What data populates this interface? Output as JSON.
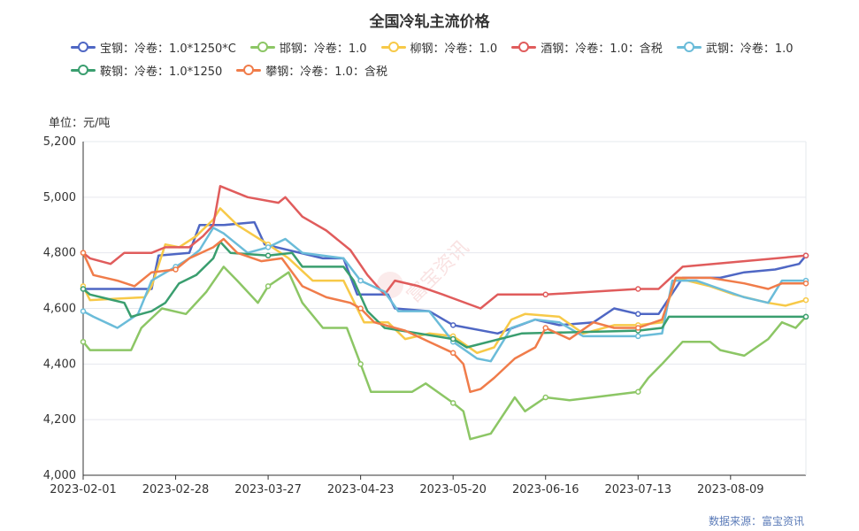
{
  "chart_data": {
    "type": "line",
    "title": "全国冷轧主流价格",
    "unit_label": "单位：元/吨",
    "source": "数据来源：富宝资讯",
    "watermark": "富宝资讯",
    "ylim": [
      4000,
      5200
    ],
    "yticks": [
      "4,000",
      "4,200",
      "4,400",
      "4,600",
      "4,800",
      "5,000",
      "5,200"
    ],
    "ytick_values": [
      4000,
      4200,
      4400,
      4600,
      4800,
      5000,
      5200
    ],
    "xlim": [
      "2023-02-01",
      "2023-08-31"
    ],
    "xticks": [
      "2023-02-01",
      "2023-02-28",
      "2023-03-27",
      "2023-04-23",
      "2023-05-20",
      "2023-06-16",
      "2023-07-13",
      "2023-08-09"
    ],
    "grid": "horizontal",
    "legend_position": "top",
    "series": [
      {
        "name": "宝钢：冷卷：1.0*1250*C",
        "color": "#4f67c4",
        "points": [
          [
            "2023-02-01",
            4670
          ],
          [
            "2023-02-11",
            4670
          ],
          [
            "2023-02-21",
            4670
          ],
          [
            "2023-02-23",
            4790
          ],
          [
            "2023-03-04",
            4800
          ],
          [
            "2023-03-07",
            4900
          ],
          [
            "2023-03-14",
            4900
          ],
          [
            "2023-03-23",
            4910
          ],
          [
            "2023-03-26",
            4830
          ],
          [
            "2023-04-12",
            4780
          ],
          [
            "2023-04-18",
            4780
          ],
          [
            "2023-04-22",
            4650
          ],
          [
            "2023-05-01",
            4650
          ],
          [
            "2023-05-03",
            4600
          ],
          [
            "2023-05-13",
            4590
          ],
          [
            "2023-05-20",
            4540
          ],
          [
            "2023-06-02",
            4510
          ],
          [
            "2023-06-13",
            4560
          ],
          [
            "2023-06-20",
            4540
          ],
          [
            "2023-06-30",
            4550
          ],
          [
            "2023-07-06",
            4600
          ],
          [
            "2023-07-13",
            4580
          ],
          [
            "2023-07-19",
            4580
          ],
          [
            "2023-07-26",
            4710
          ],
          [
            "2023-08-06",
            4710
          ],
          [
            "2023-08-13",
            4730
          ],
          [
            "2023-08-22",
            4740
          ],
          [
            "2023-08-29",
            4760
          ],
          [
            "2023-08-31",
            4790
          ]
        ]
      },
      {
        "name": "邯钢：冷卷：1.0",
        "color": "#8cc665",
        "points": [
          [
            "2023-02-01",
            4480
          ],
          [
            "2023-02-03",
            4450
          ],
          [
            "2023-02-15",
            4450
          ],
          [
            "2023-02-18",
            4530
          ],
          [
            "2023-02-24",
            4600
          ],
          [
            "2023-03-03",
            4580
          ],
          [
            "2023-03-09",
            4660
          ],
          [
            "2023-03-14",
            4750
          ],
          [
            "2023-03-18",
            4700
          ],
          [
            "2023-03-24",
            4620
          ],
          [
            "2023-03-27",
            4680
          ],
          [
            "2023-04-02",
            4730
          ],
          [
            "2023-04-06",
            4620
          ],
          [
            "2023-04-12",
            4530
          ],
          [
            "2023-04-19",
            4530
          ],
          [
            "2023-04-23",
            4400
          ],
          [
            "2023-04-26",
            4300
          ],
          [
            "2023-05-08",
            4300
          ],
          [
            "2023-05-12",
            4330
          ],
          [
            "2023-05-20",
            4260
          ],
          [
            "2023-05-23",
            4230
          ],
          [
            "2023-05-25",
            4130
          ],
          [
            "2023-05-31",
            4150
          ],
          [
            "2023-06-07",
            4280
          ],
          [
            "2023-06-10",
            4230
          ],
          [
            "2023-06-16",
            4280
          ],
          [
            "2023-06-23",
            4270
          ],
          [
            "2023-06-30",
            4280
          ],
          [
            "2023-07-13",
            4300
          ],
          [
            "2023-07-16",
            4350
          ],
          [
            "2023-07-20",
            4400
          ],
          [
            "2023-07-26",
            4480
          ],
          [
            "2023-08-03",
            4480
          ],
          [
            "2023-08-06",
            4450
          ],
          [
            "2023-08-13",
            4430
          ],
          [
            "2023-08-20",
            4490
          ],
          [
            "2023-08-24",
            4550
          ],
          [
            "2023-08-28",
            4530
          ],
          [
            "2023-08-31",
            4570
          ]
        ]
      },
      {
        "name": "柳钢：冷卷：1.0",
        "color": "#f7c948",
        "points": [
          [
            "2023-02-01",
            4680
          ],
          [
            "2023-02-03",
            4630
          ],
          [
            "2023-02-19",
            4640
          ],
          [
            "2023-02-21",
            4680
          ],
          [
            "2023-02-25",
            4830
          ],
          [
            "2023-03-01",
            4820
          ],
          [
            "2023-03-06",
            4860
          ],
          [
            "2023-03-11",
            4920
          ],
          [
            "2023-03-13",
            4960
          ],
          [
            "2023-03-18",
            4900
          ],
          [
            "2023-03-27",
            4830
          ],
          [
            "2023-04-02",
            4780
          ],
          [
            "2023-04-09",
            4700
          ],
          [
            "2023-04-18",
            4700
          ],
          [
            "2023-04-24",
            4550
          ],
          [
            "2023-05-01",
            4550
          ],
          [
            "2023-05-06",
            4490
          ],
          [
            "2023-05-13",
            4510
          ],
          [
            "2023-05-20",
            4500
          ],
          [
            "2023-05-27",
            4440
          ],
          [
            "2023-06-01",
            4460
          ],
          [
            "2023-06-06",
            4560
          ],
          [
            "2023-06-10",
            4580
          ],
          [
            "2023-06-20",
            4570
          ],
          [
            "2023-06-27",
            4510
          ],
          [
            "2023-07-06",
            4540
          ],
          [
            "2023-07-13",
            4540
          ],
          [
            "2023-07-20",
            4550
          ],
          [
            "2023-07-24",
            4710
          ],
          [
            "2023-08-03",
            4680
          ],
          [
            "2023-08-10",
            4650
          ],
          [
            "2023-08-20",
            4620
          ],
          [
            "2023-08-25",
            4610
          ],
          [
            "2023-08-31",
            4630
          ]
        ]
      },
      {
        "name": "酒钢：冷卷：1.0：含税",
        "color": "#e05c5c",
        "points": [
          [
            "2023-02-01",
            4800
          ],
          [
            "2023-02-03",
            4780
          ],
          [
            "2023-02-09",
            4760
          ],
          [
            "2023-02-13",
            4800
          ],
          [
            "2023-02-21",
            4800
          ],
          [
            "2023-02-25",
            4820
          ],
          [
            "2023-03-04",
            4820
          ],
          [
            "2023-03-08",
            4860
          ],
          [
            "2023-03-11",
            4900
          ],
          [
            "2023-03-13",
            5040
          ],
          [
            "2023-03-21",
            5000
          ],
          [
            "2023-03-30",
            4980
          ],
          [
            "2023-04-01",
            5000
          ],
          [
            "2023-04-06",
            4930
          ],
          [
            "2023-04-13",
            4880
          ],
          [
            "2023-04-20",
            4810
          ],
          [
            "2023-04-25",
            4720
          ],
          [
            "2023-04-30",
            4650
          ],
          [
            "2023-05-03",
            4700
          ],
          [
            "2023-05-10",
            4680
          ],
          [
            "2023-05-17",
            4650
          ],
          [
            "2023-05-28",
            4600
          ],
          [
            "2023-06-02",
            4650
          ],
          [
            "2023-06-16",
            4650
          ],
          [
            "2023-07-13",
            4670
          ],
          [
            "2023-07-19",
            4670
          ],
          [
            "2023-07-26",
            4750
          ],
          [
            "2023-08-31",
            4790
          ]
        ]
      },
      {
        "name": "武钢：冷卷：1.0",
        "color": "#6bbcd9",
        "points": [
          [
            "2023-02-01",
            4590
          ],
          [
            "2023-02-04",
            4570
          ],
          [
            "2023-02-11",
            4530
          ],
          [
            "2023-02-17",
            4580
          ],
          [
            "2023-02-21",
            4700
          ],
          [
            "2023-02-28",
            4750
          ],
          [
            "2023-03-04",
            4780
          ],
          [
            "2023-03-07",
            4810
          ],
          [
            "2023-03-11",
            4890
          ],
          [
            "2023-03-14",
            4870
          ],
          [
            "2023-03-21",
            4800
          ],
          [
            "2023-03-27",
            4820
          ],
          [
            "2023-04-01",
            4850
          ],
          [
            "2023-04-06",
            4800
          ],
          [
            "2023-04-18",
            4780
          ],
          [
            "2023-04-23",
            4700
          ],
          [
            "2023-04-30",
            4660
          ],
          [
            "2023-05-04",
            4590
          ],
          [
            "2023-05-13",
            4590
          ],
          [
            "2023-05-20",
            4480
          ],
          [
            "2023-05-27",
            4420
          ],
          [
            "2023-05-31",
            4410
          ],
          [
            "2023-06-06",
            4530
          ],
          [
            "2023-06-13",
            4560
          ],
          [
            "2023-06-20",
            4550
          ],
          [
            "2023-06-27",
            4500
          ],
          [
            "2023-07-06",
            4500
          ],
          [
            "2023-07-13",
            4500
          ],
          [
            "2023-07-20",
            4510
          ],
          [
            "2023-07-23",
            4700
          ],
          [
            "2023-07-30",
            4700
          ],
          [
            "2023-08-06",
            4670
          ],
          [
            "2023-08-13",
            4640
          ],
          [
            "2023-08-20",
            4620
          ],
          [
            "2023-08-24",
            4700
          ],
          [
            "2023-08-31",
            4700
          ]
        ]
      },
      {
        "name": "鞍钢：冷卷：1.0*1250",
        "color": "#3a9e6f",
        "points": [
          [
            "2023-02-01",
            4670
          ],
          [
            "2023-02-03",
            4650
          ],
          [
            "2023-02-13",
            4620
          ],
          [
            "2023-02-15",
            4570
          ],
          [
            "2023-02-21",
            4590
          ],
          [
            "2023-02-25",
            4620
          ],
          [
            "2023-03-01",
            4690
          ],
          [
            "2023-03-06",
            4720
          ],
          [
            "2023-03-11",
            4780
          ],
          [
            "2023-03-13",
            4840
          ],
          [
            "2023-03-16",
            4800
          ],
          [
            "2023-03-27",
            4790
          ],
          [
            "2023-04-03",
            4800
          ],
          [
            "2023-04-06",
            4750
          ],
          [
            "2023-04-18",
            4750
          ],
          [
            "2023-04-21",
            4700
          ],
          [
            "2023-04-25",
            4590
          ],
          [
            "2023-04-30",
            4530
          ],
          [
            "2023-05-20",
            4490
          ],
          [
            "2023-05-24",
            4460
          ],
          [
            "2023-06-09",
            4510
          ],
          [
            "2023-07-13",
            4520
          ],
          [
            "2023-07-20",
            4530
          ],
          [
            "2023-07-22",
            4570
          ],
          [
            "2023-08-31",
            4570
          ]
        ]
      },
      {
        "name": "攀钢：冷卷：1.0：含税",
        "color": "#f07c4a",
        "points": [
          [
            "2023-02-01",
            4800
          ],
          [
            "2023-02-04",
            4720
          ],
          [
            "2023-02-11",
            4700
          ],
          [
            "2023-02-16",
            4680
          ],
          [
            "2023-02-21",
            4730
          ],
          [
            "2023-02-28",
            4740
          ],
          [
            "2023-03-04",
            4780
          ],
          [
            "2023-03-11",
            4820
          ],
          [
            "2023-03-14",
            4850
          ],
          [
            "2023-03-18",
            4800
          ],
          [
            "2023-03-25",
            4770
          ],
          [
            "2023-03-31",
            4780
          ],
          [
            "2023-04-06",
            4680
          ],
          [
            "2023-04-13",
            4640
          ],
          [
            "2023-04-20",
            4620
          ],
          [
            "2023-04-23",
            4600
          ],
          [
            "2023-04-27",
            4550
          ],
          [
            "2023-05-06",
            4520
          ],
          [
            "2023-05-13",
            4480
          ],
          [
            "2023-05-20",
            4440
          ],
          [
            "2023-05-23",
            4400
          ],
          [
            "2023-05-25",
            4300
          ],
          [
            "2023-05-28",
            4310
          ],
          [
            "2023-06-01",
            4350
          ],
          [
            "2023-06-07",
            4420
          ],
          [
            "2023-06-13",
            4460
          ],
          [
            "2023-06-16",
            4530
          ],
          [
            "2023-06-23",
            4490
          ],
          [
            "2023-06-30",
            4550
          ],
          [
            "2023-07-06",
            4530
          ],
          [
            "2023-07-13",
            4530
          ],
          [
            "2023-07-20",
            4560
          ],
          [
            "2023-07-24",
            4710
          ],
          [
            "2023-08-03",
            4710
          ],
          [
            "2023-08-13",
            4690
          ],
          [
            "2023-08-20",
            4670
          ],
          [
            "2023-08-24",
            4690
          ],
          [
            "2023-08-31",
            4690
          ]
        ]
      }
    ]
  }
}
